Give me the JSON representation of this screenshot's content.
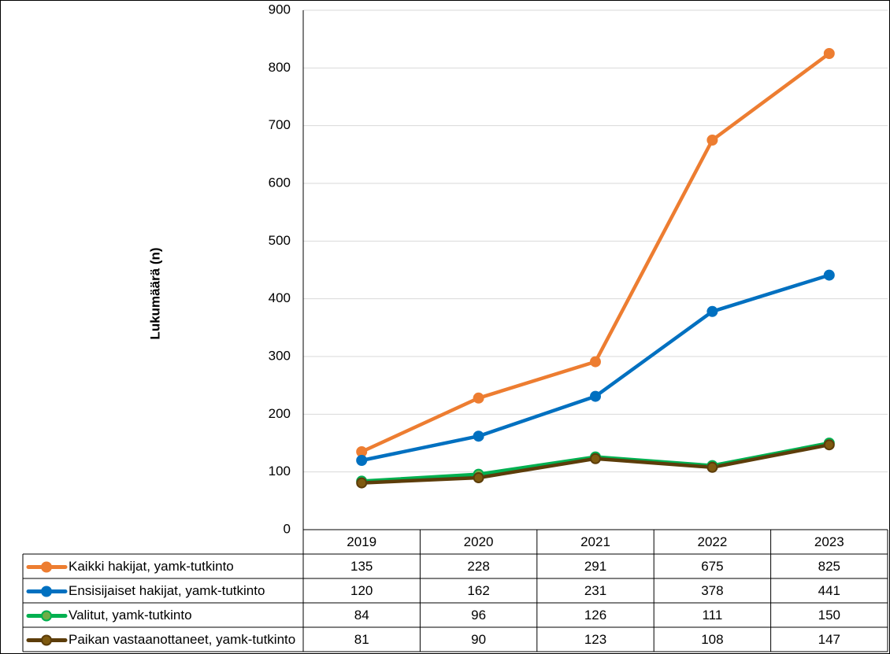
{
  "chart_data": {
    "type": "line",
    "ylabel": "Lukumäärä (n)",
    "categories": [
      "2019",
      "2020",
      "2021",
      "2022",
      "2023"
    ],
    "ylim": [
      0,
      900
    ],
    "yticks": [
      0,
      100,
      200,
      300,
      400,
      500,
      600,
      700,
      800,
      900
    ],
    "grid": true,
    "legend": "data-table-below",
    "series": [
      {
        "name": "Kaikki hakijat, yamk-tutkinto",
        "color": "#ED7D31",
        "values": [
          135,
          228,
          291,
          675,
          825
        ]
      },
      {
        "name": "Ensisijaiset hakijat, yamk-tutkinto",
        "color": "#0070C0",
        "values": [
          120,
          162,
          231,
          378,
          441
        ]
      },
      {
        "name": "Valitut, yamk-tutkinto",
        "color": "#00B050",
        "marker_fill": "#70AD47",
        "values": [
          84,
          96,
          126,
          111,
          150
        ]
      },
      {
        "name": "Paikan vastaanottaneet, yamk-tutkinto",
        "color": "#5C3D0A",
        "marker_fill": "#7F5A10",
        "values": [
          81,
          90,
          123,
          108,
          147
        ]
      }
    ]
  }
}
